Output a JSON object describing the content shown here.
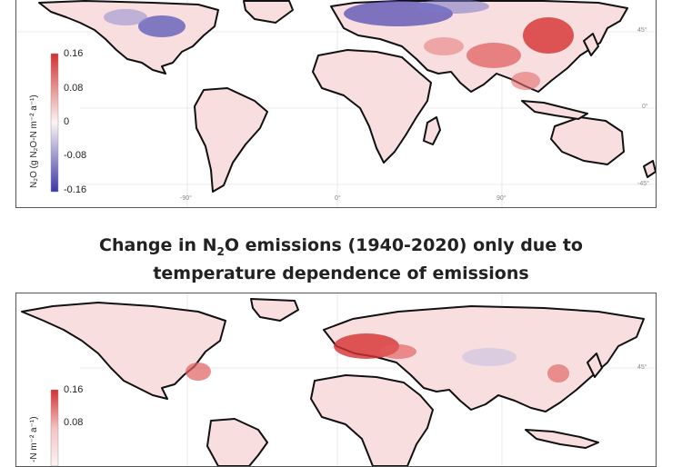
{
  "title": {
    "line1_pre": "Change in N",
    "line1_sub": "2",
    "line1_post": "O emissions (1940-2020) only due to",
    "line2": "temperature dependence of emissions"
  },
  "colorbar": {
    "ticks": [
      "0.16",
      "0.08",
      "0",
      "-0.08",
      "-0.16"
    ],
    "title_top": "N₂O (g N₂O-N m⁻² a⁻¹)",
    "title_bottom": "-N m⁻² a⁻¹)",
    "colors": {
      "positive": "#d62f2f",
      "zero": "#fbf4f4",
      "negative": "#3b36a8"
    }
  },
  "axes": {
    "lon_ticks": [
      "-90°",
      "0°",
      "90°"
    ],
    "lat_ticks_top": [
      "45°",
      "0°",
      "-45°"
    ],
    "lat_ticks_bottom": [
      "45°"
    ]
  },
  "maps": {
    "top": {
      "hotspots_positive": [
        "East Asia",
        "South Asia",
        "Middle East"
      ],
      "hotspots_negative": [
        "Eastern North America",
        "Europe",
        "Western Russia"
      ]
    },
    "bottom": {
      "hotspots_positive": [
        "Central Europe",
        "Eastern United States",
        "East China"
      ],
      "hotspots_negative": []
    }
  }
}
